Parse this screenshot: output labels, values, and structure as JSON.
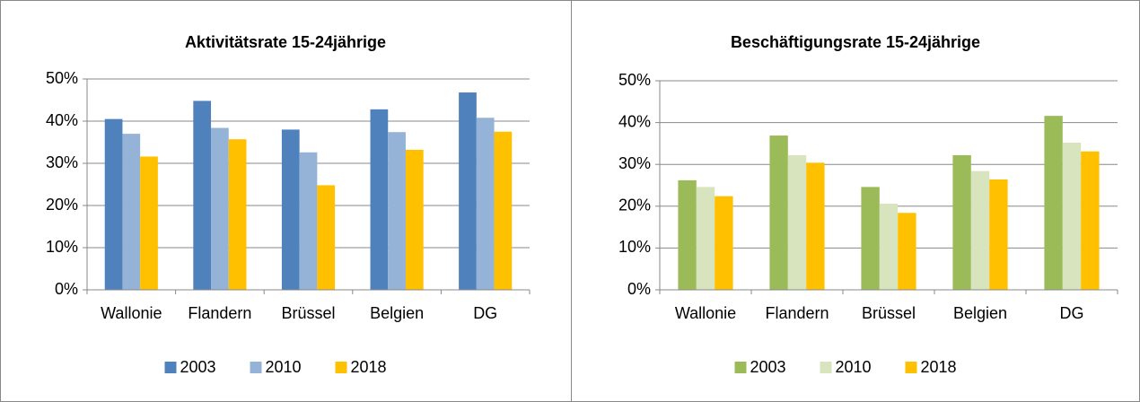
{
  "chart_data": [
    {
      "type": "bar",
      "title": "Aktivitätsrate 15-24jährige",
      "categories": [
        "Wallonie",
        "Flandern",
        "Brüssel",
        "Belgien",
        "DG"
      ],
      "series": [
        {
          "name": "2003",
          "color": "#4f81bd",
          "values": [
            40.5,
            44.8,
            38,
            42.8,
            46.8
          ]
        },
        {
          "name": "2010",
          "color": "#95b3d7",
          "values": [
            37,
            38.4,
            32.6,
            37.4,
            40.8
          ]
        },
        {
          "name": "2018",
          "color": "#ffc000",
          "values": [
            31.6,
            35.7,
            24.8,
            33.2,
            37.5
          ]
        }
      ],
      "ylim": [
        0,
        50
      ],
      "yticks": [
        {
          "value": 0,
          "label": "0%"
        },
        {
          "value": 10,
          "label": "10%"
        },
        {
          "value": 20,
          "label": "20%"
        },
        {
          "value": 30,
          "label": "30%"
        },
        {
          "value": 40,
          "label": "40%"
        },
        {
          "value": 50,
          "label": "50%"
        }
      ],
      "grid": true,
      "legend": "bottom"
    },
    {
      "type": "bar",
      "title": "Beschäftigungsrate 15-24jährige",
      "categories": [
        "Wallonie",
        "Flandern",
        "Brüssel",
        "Belgien",
        "DG"
      ],
      "series": [
        {
          "name": "2003",
          "color": "#9bbb59",
          "values": [
            26.2,
            36.9,
            24.6,
            32.2,
            41.6
          ]
        },
        {
          "name": "2010",
          "color": "#d7e4bd",
          "values": [
            24.6,
            32.2,
            20.6,
            28.4,
            35.2
          ]
        },
        {
          "name": "2018",
          "color": "#ffc000",
          "values": [
            22.4,
            30.4,
            18.4,
            26.4,
            33.1
          ]
        }
      ],
      "ylim": [
        0,
        50
      ],
      "yticks": [
        {
          "value": 0,
          "label": "0%"
        },
        {
          "value": 10,
          "label": "10%"
        },
        {
          "value": 20,
          "label": "20%"
        },
        {
          "value": 30,
          "label": "30%"
        },
        {
          "value": 40,
          "label": "40%"
        },
        {
          "value": 50,
          "label": "50%"
        }
      ],
      "grid": true,
      "legend": "bottom"
    }
  ]
}
